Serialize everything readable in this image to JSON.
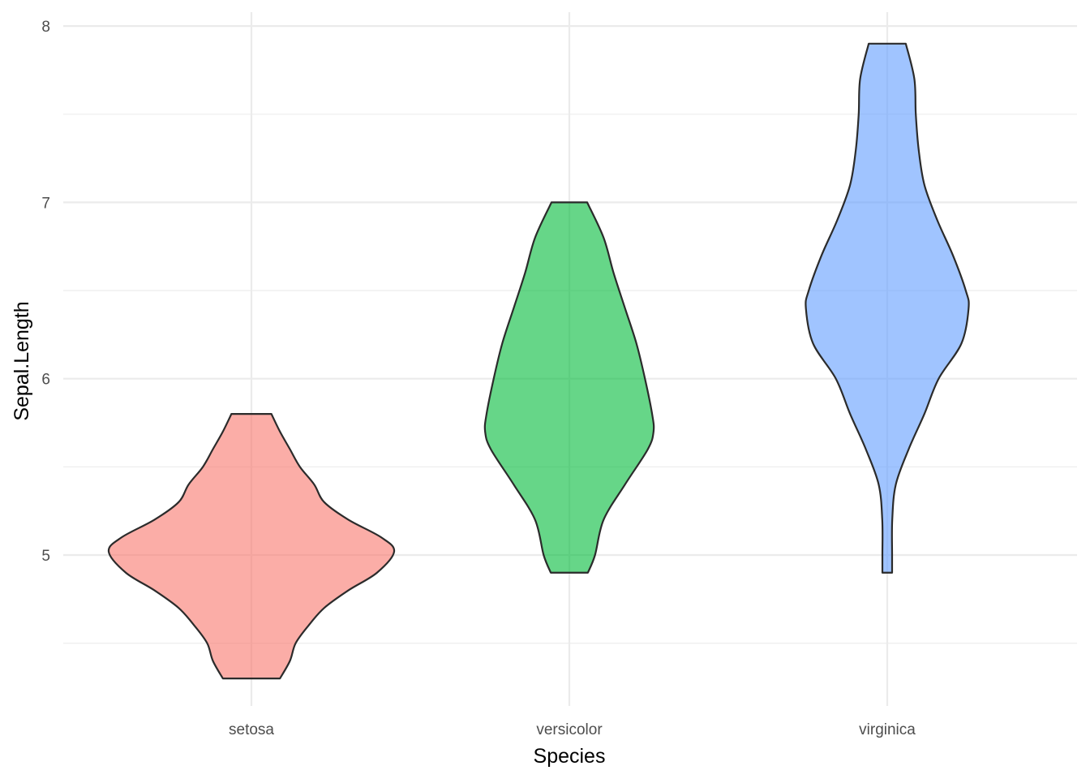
{
  "chart_data": {
    "type": "violin",
    "title": "",
    "xlabel": "Species",
    "ylabel": "Sepal.Length",
    "categories": [
      "setosa",
      "versicolor",
      "virginica"
    ],
    "ylim": [
      4.12,
      8.08
    ],
    "yticks": [
      5,
      6,
      7,
      8
    ],
    "yticks_minor": [
      4.5,
      5.5,
      6.5,
      7.5
    ],
    "grid": true,
    "legend": "none",
    "fill_alpha": 0.6,
    "series": [
      {
        "name": "setosa",
        "color": "#F8766D",
        "min": 4.3,
        "max": 5.8,
        "profile": [
          [
            4.3,
            0.2
          ],
          [
            4.4,
            0.27
          ],
          [
            4.5,
            0.31
          ],
          [
            4.6,
            0.4
          ],
          [
            4.7,
            0.51
          ],
          [
            4.8,
            0.68
          ],
          [
            4.9,
            0.88
          ],
          [
            5.02,
            1.0
          ],
          [
            5.1,
            0.91
          ],
          [
            5.2,
            0.68
          ],
          [
            5.3,
            0.51
          ],
          [
            5.4,
            0.44
          ],
          [
            5.5,
            0.34
          ],
          [
            5.6,
            0.27
          ],
          [
            5.7,
            0.2
          ],
          [
            5.8,
            0.14
          ]
        ]
      },
      {
        "name": "versicolor",
        "color": "#00BA38",
        "min": 4.9,
        "max": 7.0,
        "profile": [
          [
            4.9,
            0.13
          ],
          [
            5.0,
            0.18
          ],
          [
            5.2,
            0.24
          ],
          [
            5.4,
            0.39
          ],
          [
            5.6,
            0.55
          ],
          [
            5.7,
            0.59
          ],
          [
            5.8,
            0.58
          ],
          [
            6.0,
            0.53
          ],
          [
            6.2,
            0.47
          ],
          [
            6.4,
            0.39
          ],
          [
            6.6,
            0.31
          ],
          [
            6.8,
            0.24
          ],
          [
            7.0,
            0.125
          ]
        ]
      },
      {
        "name": "virginica",
        "color": "#619CFF",
        "min": 4.9,
        "max": 7.9,
        "profile": [
          [
            4.9,
            0.034
          ],
          [
            5.0,
            0.034
          ],
          [
            5.2,
            0.035
          ],
          [
            5.4,
            0.06
          ],
          [
            5.6,
            0.15
          ],
          [
            5.8,
            0.26
          ],
          [
            6.0,
            0.36
          ],
          [
            6.2,
            0.52
          ],
          [
            6.4,
            0.57
          ],
          [
            6.5,
            0.55
          ],
          [
            6.7,
            0.46
          ],
          [
            6.9,
            0.35
          ],
          [
            7.1,
            0.26
          ],
          [
            7.3,
            0.22
          ],
          [
            7.5,
            0.2
          ],
          [
            7.7,
            0.19
          ],
          [
            7.9,
            0.13
          ]
        ]
      }
    ]
  }
}
